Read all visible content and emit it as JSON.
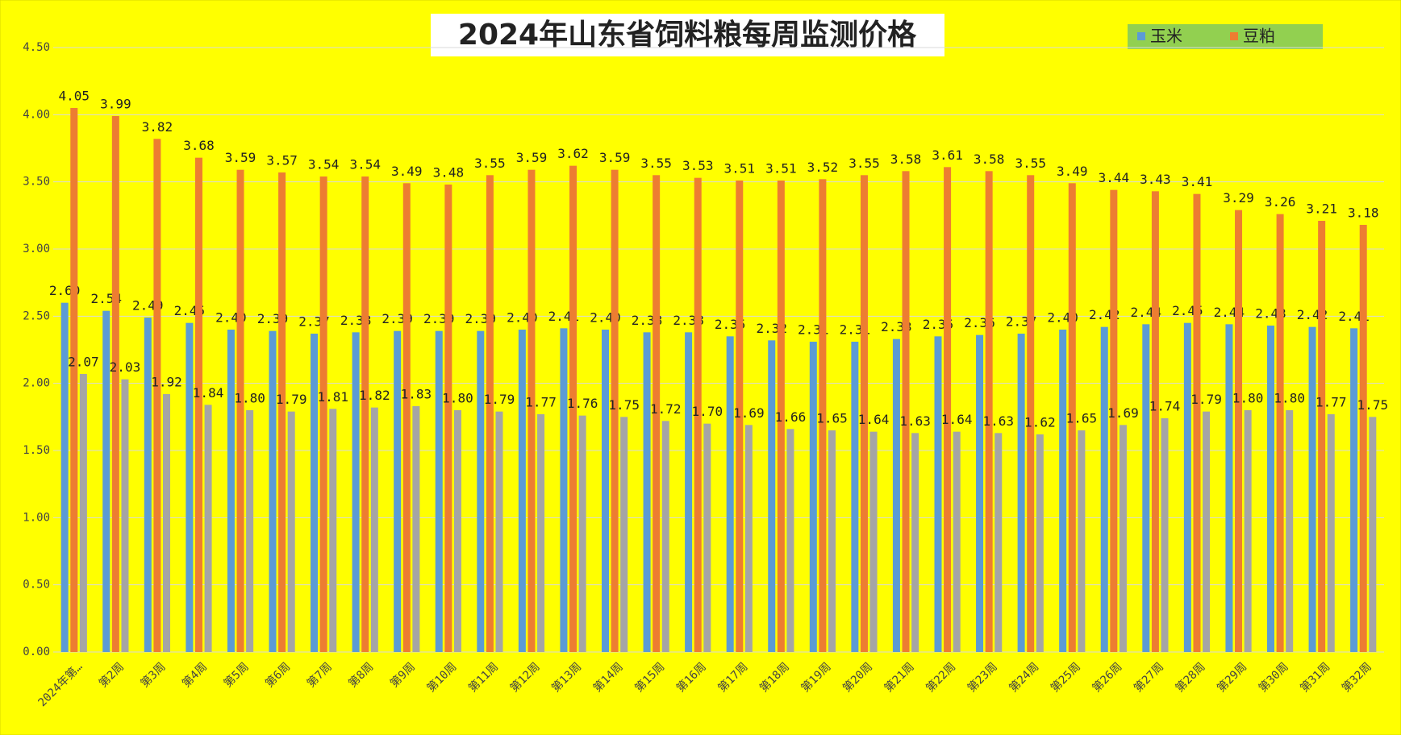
{
  "chart_data": {
    "type": "bar",
    "title": "2024年山东省饲料粮每周监测价格",
    "categories": [
      "2024年第…",
      "第2周",
      "第3周",
      "第4周",
      "第5周",
      "第6周",
      "第7周",
      "第8周",
      "第9周",
      "第10周",
      "第11周",
      "第12周",
      "第13周",
      "第14周",
      "第15周",
      "第16周",
      "第17周",
      "第18周",
      "第19周",
      "第20周",
      "第21周",
      "第22周",
      "第23周",
      "第24周",
      "第25周",
      "第26周",
      "第27周",
      "第28周",
      "第29周",
      "第30周",
      "第31周",
      "第32周"
    ],
    "series": [
      {
        "name": "玉米",
        "color": "#5b9bd5",
        "values": [
          2.6,
          2.54,
          2.49,
          2.45,
          2.4,
          2.39,
          2.37,
          2.38,
          2.39,
          2.39,
          2.39,
          2.4,
          2.41,
          2.4,
          2.38,
          2.38,
          2.35,
          2.32,
          2.31,
          2.31,
          2.33,
          2.35,
          2.36,
          2.37,
          2.4,
          2.42,
          2.44,
          2.45,
          2.44,
          2.43,
          2.42,
          2.41
        ],
        "value_labels": [
          "2.60",
          "2.54",
          "2.49",
          "2.45",
          "2.40",
          "2.39",
          "2.37",
          "2.38",
          "2.39",
          "2.39",
          "2.39",
          "2.40",
          "2.41",
          "2.40",
          "2.38",
          "2.38",
          "2.35",
          "2.32",
          "2.31",
          "2.31",
          "2.33",
          "2.35",
          "2.36",
          "2.37",
          "2.40",
          "2.42",
          "2.44",
          "2.45",
          "2.44",
          "2.43",
          "2.42",
          "2.41"
        ]
      },
      {
        "name": "豆粕",
        "color": "#ed7d31",
        "values": [
          4.05,
          3.99,
          3.82,
          3.68,
          3.59,
          3.57,
          3.54,
          3.54,
          3.49,
          3.48,
          3.55,
          3.59,
          3.62,
          3.59,
          3.55,
          3.53,
          3.51,
          3.51,
          3.52,
          3.55,
          3.58,
          3.61,
          3.58,
          3.55,
          3.49,
          3.44,
          3.43,
          3.41,
          3.29,
          3.26,
          3.21,
          3.18
        ],
        "value_labels": [
          "4.05",
          "3.99",
          "3.82",
          "3.68",
          "3.59",
          "3.57",
          "3.54",
          "3.54",
          "3.49",
          "3.48",
          "3.55",
          "3.59",
          "3.62",
          "3.59",
          "3.55",
          "3.53",
          "3.51",
          "3.51",
          "3.52",
          "3.55",
          "3.58",
          "3.61",
          "3.58",
          "3.55",
          "3.49",
          "3.44",
          "3.43",
          "3.41",
          "3.29",
          "3.26",
          "3.21",
          "3.18"
        ]
      },
      {
        "color": "#a5a5a5",
        "values": [
          2.07,
          2.03,
          1.92,
          1.84,
          1.8,
          1.79,
          1.81,
          1.82,
          1.83,
          1.8,
          1.79,
          1.77,
          1.76,
          1.75,
          1.72,
          1.7,
          1.69,
          1.66,
          1.65,
          1.64,
          1.63,
          1.64,
          1.63,
          1.62,
          1.65,
          1.69,
          1.74,
          1.79,
          1.8,
          1.8,
          1.77,
          1.75
        ],
        "value_labels": [
          "2.07",
          "2.03",
          "1.92",
          "1.84",
          "1.80",
          "1.79",
          "1.81",
          "1.82",
          "1.83",
          "1.80",
          "1.79",
          "1.77",
          "1.76",
          "1.75",
          "1.72",
          "1.70",
          "1.69",
          "1.66",
          "1.65",
          "1.64",
          "1.63",
          "1.64",
          "1.63",
          "1.62",
          "1.65",
          "1.69",
          "1.74",
          "1.79",
          "1.80",
          "1.80",
          "1.77",
          "1.75"
        ]
      }
    ],
    "ylim": [
      0,
      4.5
    ],
    "yticks": [
      {
        "value": 0,
        "label": "0.00"
      },
      {
        "value": 0.5,
        "label": "0.50"
      },
      {
        "value": 1,
        "label": "1.00"
      },
      {
        "value": 1.5,
        "label": "1.50"
      },
      {
        "value": 2,
        "label": "2.00"
      },
      {
        "value": 2.5,
        "label": "2.50"
      },
      {
        "value": 3,
        "label": "3.00"
      },
      {
        "value": 3.5,
        "label": "3.50"
      },
      {
        "value": 4,
        "label": "4.00"
      },
      {
        "value": 4.5,
        "label": "4.50"
      }
    ],
    "grid": true,
    "legend": "top-right"
  }
}
